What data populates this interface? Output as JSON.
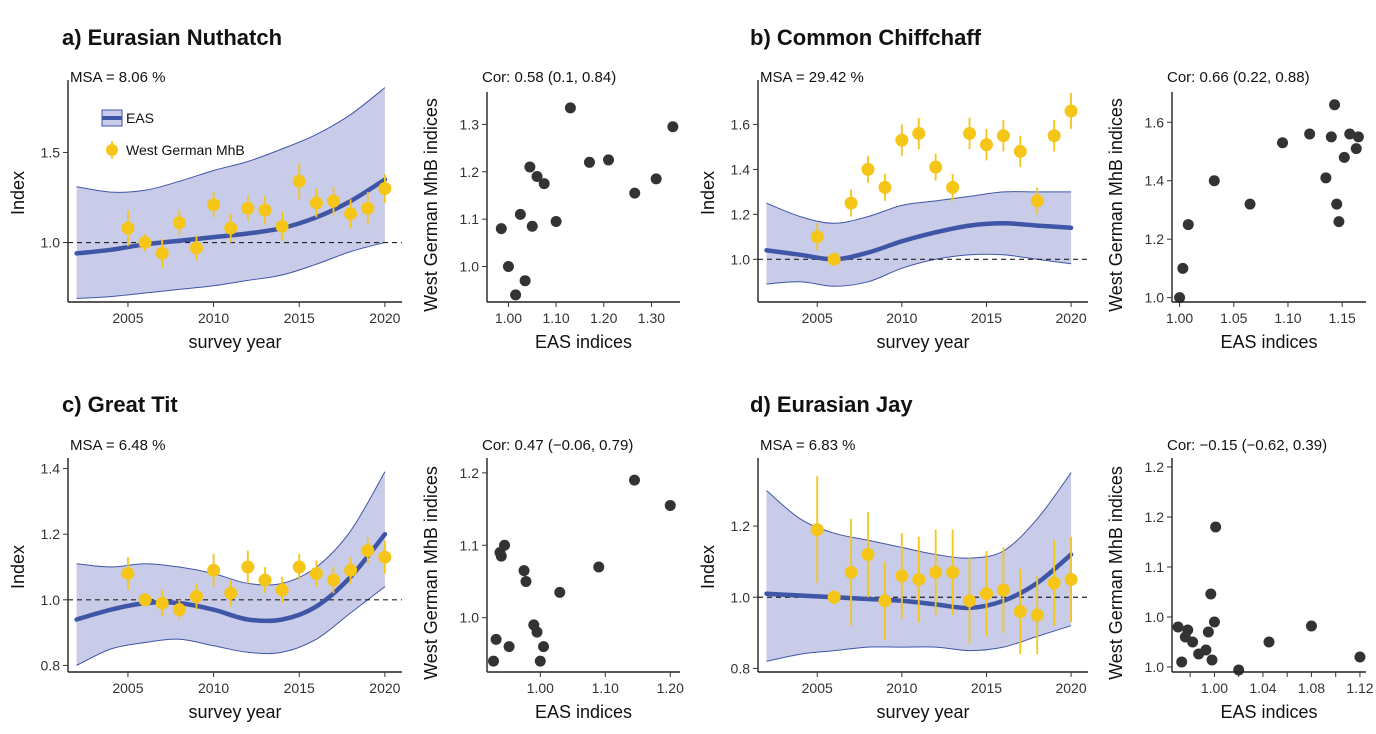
{
  "chart_data": [
    {
      "id": "a",
      "type": "line",
      "title": "a) Eurasian Nuthatch",
      "msa": "MSA = 8.06 %",
      "xlabel": "survey year",
      "ylabel": "Index",
      "xlim": [
        2001.5,
        2021
      ],
      "ylim": [
        0.67,
        1.88
      ],
      "xticks": [
        2005,
        2010,
        2015,
        2020
      ],
      "yticks": [
        {
          "v": 1.0,
          "l": "1.0"
        },
        {
          "v": 1.5,
          "l": "1.5"
        }
      ],
      "legend": {
        "position": "top-left",
        "entries": [
          "EAS",
          "West German MhB"
        ]
      },
      "colors": {
        "eas_line": "#3f56a6",
        "eas_band": "#c8cce8",
        "mhb": "#f5c518"
      },
      "eas": {
        "x": [
          2002,
          2004,
          2006,
          2008,
          2010,
          2012,
          2014,
          2016,
          2018,
          2020
        ],
        "y": [
          0.94,
          0.96,
          0.99,
          1.01,
          1.03,
          1.05,
          1.08,
          1.14,
          1.23,
          1.35
        ],
        "lo": [
          0.69,
          0.7,
          0.72,
          0.74,
          0.76,
          0.79,
          0.82,
          0.88,
          0.95,
          1.0
        ],
        "hi": [
          1.31,
          1.28,
          1.29,
          1.34,
          1.4,
          1.45,
          1.52,
          1.6,
          1.71,
          1.86
        ]
      },
      "mhb": {
        "x": [
          2005,
          2006,
          2007,
          2008,
          2009,
          2010,
          2011,
          2012,
          2013,
          2014,
          2015,
          2016,
          2017,
          2018,
          2019,
          2020
        ],
        "y": [
          1.08,
          1.0,
          0.94,
          1.11,
          0.97,
          1.21,
          1.08,
          1.19,
          1.18,
          1.09,
          1.34,
          1.22,
          1.23,
          1.16,
          1.19,
          1.3
        ],
        "lo": [
          0.98,
          0.95,
          0.86,
          1.04,
          0.9,
          1.14,
          1.0,
          1.12,
          1.1,
          1.01,
          1.24,
          1.14,
          1.15,
          1.08,
          1.1,
          1.22
        ],
        "hi": [
          1.18,
          1.05,
          1.02,
          1.18,
          1.04,
          1.28,
          1.16,
          1.26,
          1.26,
          1.17,
          1.44,
          1.3,
          1.31,
          1.24,
          1.28,
          1.38
        ]
      }
    },
    {
      "id": "a-cor",
      "type": "scatter",
      "cor": "Cor: 0.58 (0.1, 0.84)",
      "xlabel": "EAS indices",
      "ylabel": "West German MhB indices",
      "xlim": [
        0.955,
        1.36
      ],
      "ylim": [
        0.925,
        1.36
      ],
      "xticks": [
        {
          "v": 1.0,
          "l": "1.00"
        },
        {
          "v": 1.1,
          "l": "1.10"
        },
        {
          "v": 1.2,
          "l": "1.20"
        },
        {
          "v": 1.3,
          "l": "1.30"
        }
      ],
      "yticks": [
        {
          "v": 1.0,
          "l": "1.0"
        },
        {
          "v": 1.1,
          "l": "1.1"
        },
        {
          "v": 1.2,
          "l": "1.2"
        },
        {
          "v": 1.3,
          "l": "1.3"
        }
      ],
      "points": {
        "x": [
          0.985,
          1.0,
          1.015,
          1.025,
          1.035,
          1.045,
          1.05,
          1.06,
          1.075,
          1.1,
          1.13,
          1.17,
          1.21,
          1.265,
          1.31,
          1.345
        ],
        "y": [
          1.08,
          1.0,
          0.94,
          1.11,
          0.97,
          1.21,
          1.085,
          1.19,
          1.175,
          1.095,
          1.335,
          1.22,
          1.225,
          1.155,
          1.185,
          1.295
        ]
      }
    },
    {
      "id": "b",
      "type": "line",
      "title": "b) Common Chiffchaff",
      "msa": "MSA = 29.42 %",
      "xlabel": "survey year",
      "ylabel": "Index",
      "xlim": [
        2001.5,
        2021
      ],
      "ylim": [
        0.81,
        1.78
      ],
      "xticks": [
        2005,
        2010,
        2015,
        2020
      ],
      "yticks": [
        {
          "v": 1.0,
          "l": "1.0"
        },
        {
          "v": 1.2,
          "l": "1.2"
        },
        {
          "v": 1.4,
          "l": "1.4"
        },
        {
          "v": 1.6,
          "l": "1.6"
        }
      ],
      "colors": {
        "eas_line": "#3f56a6",
        "eas_band": "#c8cce8",
        "mhb": "#f5c518"
      },
      "eas": {
        "x": [
          2002,
          2004,
          2006,
          2008,
          2010,
          2012,
          2014,
          2016,
          2018,
          2020
        ],
        "y": [
          1.04,
          1.02,
          1.0,
          1.03,
          1.08,
          1.12,
          1.15,
          1.16,
          1.15,
          1.14
        ],
        "lo": [
          0.89,
          0.9,
          0.88,
          0.9,
          0.96,
          1.0,
          1.02,
          1.02,
          1.0,
          0.98
        ],
        "hi": [
          1.25,
          1.19,
          1.16,
          1.19,
          1.24,
          1.26,
          1.28,
          1.3,
          1.3,
          1.3
        ]
      },
      "mhb": {
        "x": [
          2005,
          2006,
          2007,
          2008,
          2009,
          2010,
          2011,
          2012,
          2013,
          2014,
          2015,
          2016,
          2017,
          2018,
          2019,
          2020
        ],
        "y": [
          1.1,
          1.0,
          1.25,
          1.4,
          1.32,
          1.53,
          1.56,
          1.41,
          1.32,
          1.56,
          1.51,
          1.55,
          1.48,
          1.26,
          1.55,
          1.66
        ],
        "lo": [
          1.04,
          0.98,
          1.19,
          1.34,
          1.26,
          1.46,
          1.49,
          1.35,
          1.26,
          1.49,
          1.44,
          1.48,
          1.41,
          1.2,
          1.48,
          1.58
        ],
        "hi": [
          1.16,
          1.02,
          1.31,
          1.46,
          1.38,
          1.6,
          1.63,
          1.47,
          1.38,
          1.63,
          1.58,
          1.62,
          1.55,
          1.32,
          1.62,
          1.74
        ]
      }
    },
    {
      "id": "b-cor",
      "type": "scatter",
      "cor": "Cor: 0.66 (0.22, 0.88)",
      "xlabel": "EAS indices",
      "ylabel": "West German MhB indices",
      "xlim": [
        0.993,
        1.172
      ],
      "ylim": [
        0.985,
        1.69
      ],
      "xticks": [
        {
          "v": 1.0,
          "l": "1.00"
        },
        {
          "v": 1.05,
          "l": "1.05"
        },
        {
          "v": 1.1,
          "l": "1.10"
        },
        {
          "v": 1.15,
          "l": "1.15"
        }
      ],
      "yticks": [
        {
          "v": 1.0,
          "l": "1.0"
        },
        {
          "v": 1.2,
          "l": "1.2"
        },
        {
          "v": 1.4,
          "l": "1.4"
        },
        {
          "v": 1.6,
          "l": "1.6"
        }
      ],
      "points": {
        "x": [
          1.0,
          1.003,
          1.008,
          1.032,
          1.065,
          1.095,
          1.12,
          1.135,
          1.14,
          1.143,
          1.145,
          1.147,
          1.152,
          1.157,
          1.163,
          1.165
        ],
        "y": [
          1.0,
          1.1,
          1.25,
          1.4,
          1.32,
          1.53,
          1.56,
          1.41,
          1.55,
          1.66,
          1.32,
          1.26,
          1.48,
          1.56,
          1.51,
          1.55
        ]
      }
    },
    {
      "id": "c",
      "type": "line",
      "title": "c) Great Tit",
      "msa": "MSA = 6.48 %",
      "xlabel": "survey year",
      "ylabel": "Index",
      "xlim": [
        2001.5,
        2021
      ],
      "ylim": [
        0.78,
        1.42
      ],
      "xticks": [
        2005,
        2010,
        2015,
        2020
      ],
      "yticks": [
        {
          "v": 0.8,
          "l": "0.8"
        },
        {
          "v": 1.0,
          "l": "1.0"
        },
        {
          "v": 1.2,
          "l": "1.2"
        },
        {
          "v": 1.4,
          "l": "1.4"
        }
      ],
      "colors": {
        "eas_line": "#3f56a6",
        "eas_band": "#c8cce8",
        "mhb": "#f5c518"
      },
      "eas": {
        "x": [
          2002,
          2004,
          2006,
          2008,
          2010,
          2012,
          2014,
          2016,
          2018,
          2020
        ],
        "y": [
          0.94,
          0.97,
          0.99,
          0.99,
          0.97,
          0.94,
          0.94,
          0.98,
          1.07,
          1.2
        ],
        "lo": [
          0.8,
          0.85,
          0.87,
          0.88,
          0.86,
          0.84,
          0.84,
          0.88,
          0.96,
          1.04
        ],
        "hi": [
          1.11,
          1.1,
          1.11,
          1.1,
          1.08,
          1.05,
          1.05,
          1.1,
          1.21,
          1.39
        ]
      },
      "mhb": {
        "x": [
          2005,
          2006,
          2007,
          2008,
          2009,
          2010,
          2011,
          2012,
          2013,
          2014,
          2015,
          2016,
          2017,
          2018,
          2019,
          2020
        ],
        "y": [
          1.08,
          1.0,
          0.99,
          0.97,
          1.01,
          1.09,
          1.02,
          1.1,
          1.06,
          1.03,
          1.1,
          1.08,
          1.06,
          1.09,
          1.15,
          1.13
        ],
        "lo": [
          1.03,
          0.98,
          0.95,
          0.94,
          0.97,
          1.04,
          0.98,
          1.05,
          1.02,
          0.99,
          1.06,
          1.04,
          1.02,
          1.05,
          1.11,
          1.08
        ],
        "hi": [
          1.13,
          1.02,
          1.03,
          1.0,
          1.05,
          1.14,
          1.06,
          1.15,
          1.1,
          1.07,
          1.14,
          1.12,
          1.1,
          1.13,
          1.19,
          1.18
        ]
      }
    },
    {
      "id": "c-cor",
      "type": "scatter",
      "cor": "Cor: 0.47 (−0.06, 0.79)",
      "xlabel": "EAS indices",
      "ylabel": "West German MhB indices",
      "xlim": [
        0.918,
        1.215
      ],
      "ylim": [
        0.925,
        1.215
      ],
      "xticks": [
        {
          "v": 1.0,
          "l": "1.00"
        },
        {
          "v": 1.1,
          "l": "1.10"
        },
        {
          "v": 1.2,
          "l": "1.20"
        }
      ],
      "yticks": [
        {
          "v": 1.0,
          "l": "1.0"
        },
        {
          "v": 1.1,
          "l": "1.1"
        },
        {
          "v": 1.2,
          "l": "1.2"
        }
      ],
      "points": {
        "x": [
          0.928,
          0.932,
          0.938,
          0.945,
          0.952,
          0.975,
          0.978,
          0.99,
          0.995,
          1.0,
          1.005,
          1.03,
          1.09,
          1.145,
          1.2,
          0.94
        ],
        "y": [
          0.94,
          0.97,
          1.09,
          1.1,
          0.96,
          1.065,
          1.05,
          0.99,
          0.98,
          0.94,
          0.96,
          1.035,
          1.07,
          1.19,
          1.155,
          1.085
        ]
      }
    },
    {
      "id": "d",
      "type": "line",
      "title": "d) Eurasian Jay",
      "msa": "MSA = 6.83 %",
      "xlabel": "survey year",
      "ylabel": "Index",
      "xlim": [
        2001.5,
        2021
      ],
      "ylim": [
        0.79,
        1.38
      ],
      "xticks": [
        2005,
        2010,
        2015,
        2020
      ],
      "yticks": [
        {
          "v": 0.8,
          "l": "0.8"
        },
        {
          "v": 1.0,
          "l": "1.0"
        },
        {
          "v": 1.2,
          "l": "1.2"
        }
      ],
      "colors": {
        "eas_line": "#3f56a6",
        "eas_band": "#c8cce8",
        "mhb": "#f5c518"
      },
      "eas": {
        "x": [
          2002,
          2004,
          2006,
          2008,
          2010,
          2012,
          2014,
          2016,
          2018,
          2020
        ],
        "y": [
          1.01,
          1.005,
          1.0,
          0.995,
          0.99,
          0.98,
          0.97,
          0.99,
          1.04,
          1.12
        ],
        "lo": [
          0.82,
          0.84,
          0.85,
          0.86,
          0.86,
          0.86,
          0.85,
          0.86,
          0.89,
          0.92
        ],
        "hi": [
          1.3,
          1.22,
          1.18,
          1.16,
          1.14,
          1.12,
          1.11,
          1.13,
          1.22,
          1.35
        ]
      },
      "mhb": {
        "x": [
          2005,
          2006,
          2007,
          2008,
          2009,
          2010,
          2011,
          2012,
          2013,
          2014,
          2015,
          2016,
          2017,
          2018,
          2019,
          2020
        ],
        "y": [
          1.19,
          1.0,
          1.07,
          1.12,
          0.99,
          1.06,
          1.05,
          1.07,
          1.07,
          0.99,
          1.01,
          1.02,
          0.96,
          0.95,
          1.04,
          1.05
        ],
        "lo": [
          1.04,
          0.98,
          0.92,
          1.0,
          0.88,
          0.94,
          0.93,
          0.95,
          0.95,
          0.87,
          0.89,
          0.9,
          0.84,
          0.84,
          0.92,
          0.93
        ],
        "hi": [
          1.34,
          1.02,
          1.22,
          1.24,
          1.1,
          1.18,
          1.17,
          1.19,
          1.19,
          1.11,
          1.13,
          1.14,
          1.08,
          1.06,
          1.16,
          1.17
        ]
      }
    },
    {
      "id": "d-cor",
      "type": "scatter",
      "cor": "Cor: −0.15 (−0.62, 0.39)",
      "xlabel": "EAS indices",
      "ylabel": "West German MhB indices",
      "xlim": [
        0.965,
        1.125
      ],
      "ylim": [
        0.995,
        1.205
      ],
      "xticks": [
        {
          "v": 0.98,
          "l": ""
        },
        {
          "v": 1.0,
          "l": "1.00"
        },
        {
          "v": 1.02,
          "l": ""
        },
        {
          "v": 1.04,
          "l": "1.04"
        },
        {
          "v": 1.06,
          "l": ""
        },
        {
          "v": 1.08,
          "l": "1.08"
        },
        {
          "v": 1.1,
          "l": ""
        },
        {
          "v": 1.12,
          "l": "1.12"
        }
      ],
      "yticks": [
        {
          "v": 1.0,
          "l": "1.0"
        },
        {
          "v": 1.05,
          "l": "1.0"
        },
        {
          "v": 1.1,
          "l": "1.1"
        },
        {
          "v": 1.15,
          "l": "1.2"
        },
        {
          "v": 1.2,
          "l": "1.2"
        }
      ],
      "points": {
        "x": [
          0.97,
          0.973,
          0.976,
          0.978,
          0.982,
          0.987,
          0.993,
          0.995,
          0.997,
          0.998,
          1.0,
          1.001,
          1.02,
          1.045,
          1.08,
          1.12
        ],
        "y": [
          1.04,
          1.005,
          1.03,
          1.037,
          1.025,
          1.013,
          1.017,
          1.035,
          1.073,
          1.007,
          1.045,
          1.14,
          0.997,
          1.025,
          1.041,
          1.01
        ]
      }
    }
  ]
}
